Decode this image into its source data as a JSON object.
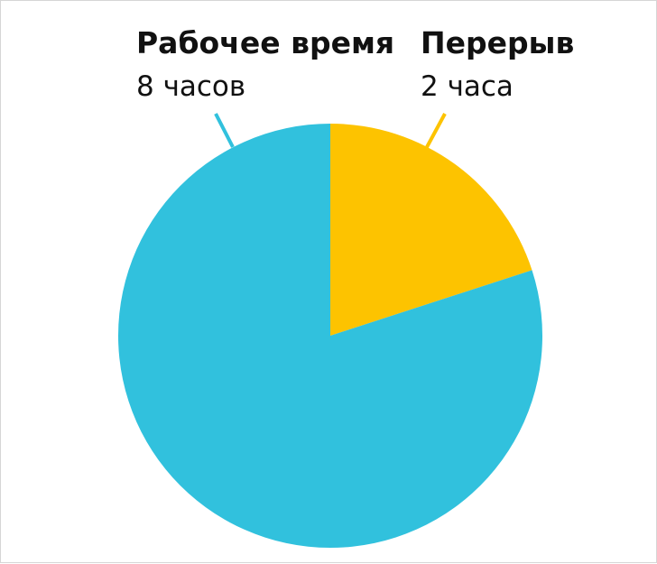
{
  "chart_data": {
    "type": "pie",
    "title": "",
    "series": [
      {
        "name": "Рабочее время",
        "value_label": "8 часов",
        "value": 8,
        "color": "#31C1DD"
      },
      {
        "name": "Перерыв",
        "value_label": "2 часа",
        "value": 2,
        "color": "#FDC300"
      }
    ],
    "leader_color": "#31C1DD",
    "leader_color_2": "#FDC300"
  }
}
